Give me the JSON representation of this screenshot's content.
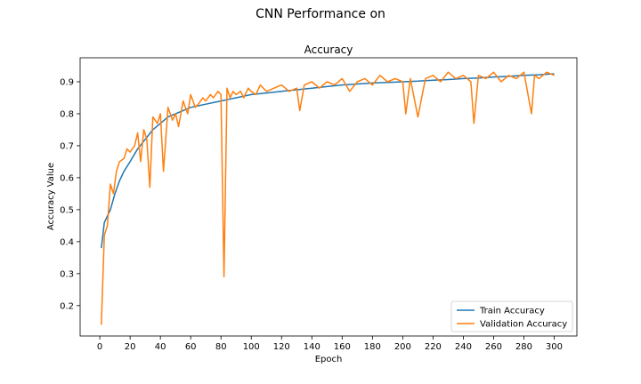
{
  "figure": {
    "suptitle": "CNN Performance on"
  },
  "chart_data": {
    "type": "line",
    "title": "Accuracy",
    "xlabel": "Epoch",
    "ylabel": "Accuracy Value",
    "xlim": [
      -13,
      315
    ],
    "ylim": [
      0.105,
      0.975
    ],
    "xticks": [
      0,
      20,
      40,
      60,
      80,
      100,
      120,
      140,
      160,
      180,
      200,
      220,
      240,
      260,
      280,
      300
    ],
    "yticks": [
      0.2,
      0.3,
      0.4,
      0.5,
      0.6,
      0.7,
      0.8,
      0.9
    ],
    "legend": {
      "position": "lower-right"
    },
    "grid": false,
    "series": [
      {
        "name": "Train Accuracy",
        "color": "#1f77b4",
        "x": [
          1,
          3,
          5,
          7,
          10,
          13,
          16,
          20,
          25,
          30,
          35,
          40,
          45,
          50,
          55,
          60,
          65,
          70,
          75,
          80,
          85,
          90,
          95,
          100,
          110,
          120,
          130,
          140,
          150,
          160,
          170,
          180,
          190,
          200,
          210,
          220,
          230,
          240,
          250,
          260,
          270,
          280,
          290,
          300
        ],
        "values": [
          0.38,
          0.46,
          0.48,
          0.5,
          0.55,
          0.59,
          0.62,
          0.65,
          0.69,
          0.72,
          0.75,
          0.77,
          0.79,
          0.8,
          0.81,
          0.82,
          0.825,
          0.83,
          0.835,
          0.84,
          0.845,
          0.85,
          0.855,
          0.86,
          0.865,
          0.87,
          0.875,
          0.88,
          0.885,
          0.89,
          0.893,
          0.896,
          0.898,
          0.9,
          0.902,
          0.905,
          0.907,
          0.91,
          0.912,
          0.915,
          0.917,
          0.92,
          0.922,
          0.925
        ]
      },
      {
        "name": "Validation Accuracy",
        "color": "#ff7f0e",
        "x": [
          1,
          3,
          5,
          7,
          9,
          11,
          13,
          16,
          18,
          20,
          23,
          25,
          27,
          29,
          31,
          33,
          35,
          38,
          40,
          42,
          45,
          48,
          50,
          52,
          55,
          58,
          60,
          63,
          65,
          68,
          70,
          73,
          75,
          78,
          80,
          82,
          84,
          86,
          88,
          90,
          93,
          95,
          98,
          100,
          103,
          106,
          110,
          115,
          120,
          125,
          130,
          132,
          135,
          140,
          145,
          150,
          155,
          160,
          165,
          170,
          175,
          180,
          185,
          190,
          195,
          200,
          202,
          205,
          210,
          215,
          220,
          225,
          230,
          235,
          240,
          245,
          247,
          250,
          255,
          260,
          265,
          270,
          275,
          280,
          285,
          287,
          290,
          295,
          300
        ],
        "values": [
          0.14,
          0.42,
          0.45,
          0.58,
          0.55,
          0.62,
          0.65,
          0.66,
          0.69,
          0.68,
          0.7,
          0.74,
          0.65,
          0.75,
          0.72,
          0.57,
          0.79,
          0.77,
          0.8,
          0.62,
          0.82,
          0.78,
          0.8,
          0.76,
          0.84,
          0.8,
          0.86,
          0.82,
          0.83,
          0.85,
          0.84,
          0.86,
          0.85,
          0.87,
          0.86,
          0.29,
          0.88,
          0.85,
          0.87,
          0.86,
          0.87,
          0.85,
          0.88,
          0.87,
          0.86,
          0.89,
          0.87,
          0.88,
          0.89,
          0.87,
          0.88,
          0.81,
          0.89,
          0.9,
          0.88,
          0.9,
          0.89,
          0.91,
          0.87,
          0.9,
          0.91,
          0.89,
          0.92,
          0.9,
          0.91,
          0.9,
          0.8,
          0.91,
          0.79,
          0.91,
          0.92,
          0.9,
          0.93,
          0.91,
          0.92,
          0.9,
          0.77,
          0.92,
          0.91,
          0.93,
          0.9,
          0.92,
          0.91,
          0.93,
          0.8,
          0.92,
          0.91,
          0.93,
          0.92
        ]
      }
    ]
  }
}
